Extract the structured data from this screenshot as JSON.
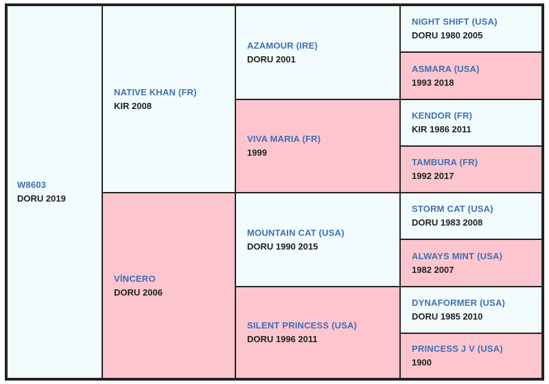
{
  "horses": {
    "subject": {
      "name": "W8603",
      "info": "DORU 2019"
    },
    "sire": {
      "name": "NATIVE KHAN (FR)",
      "info": "KIR 2008"
    },
    "dam": {
      "name": "VİNCERO",
      "info": "DORU 2006"
    },
    "ss": {
      "name": "AZAMOUR (IRE)",
      "info": "DORU 2001"
    },
    "sd": {
      "name": "VIVA MARIA (FR)",
      "info": "1999"
    },
    "ds": {
      "name": "MOUNTAIN CAT (USA)",
      "info": "DORU 1990 2015"
    },
    "dd": {
      "name": "SILENT PRINCESS (USA)",
      "info": "DORU 1996 2011"
    },
    "sss": {
      "name": "NIGHT SHIFT (USA)",
      "info": "DORU 1980 2005"
    },
    "ssd": {
      "name": "ASMARA (USA)",
      "info": "1993 2018"
    },
    "sds": {
      "name": "KENDOR (FR)",
      "info": "KIR 1986 2011"
    },
    "sdd": {
      "name": "TAMBURA (FR)",
      "info": "1992 2017"
    },
    "dss": {
      "name": "STORM CAT (USA)",
      "info": "DORU 1983 2008"
    },
    "dsd": {
      "name": "ALWAYS MINT (USA)",
      "info": "1982 2007"
    },
    "dds": {
      "name": "DYNAFORMER (USA)",
      "info": "DORU 1985 2010"
    },
    "ddd": {
      "name": "PRINCESS J V (USA)",
      "info": "1900"
    }
  },
  "colors": {
    "male_bg": "#f2fcfd",
    "female_bg": "#fdc6cf",
    "name_text": "#3f6fb3",
    "info_text": "#1e1e1e",
    "border": "#222222"
  }
}
